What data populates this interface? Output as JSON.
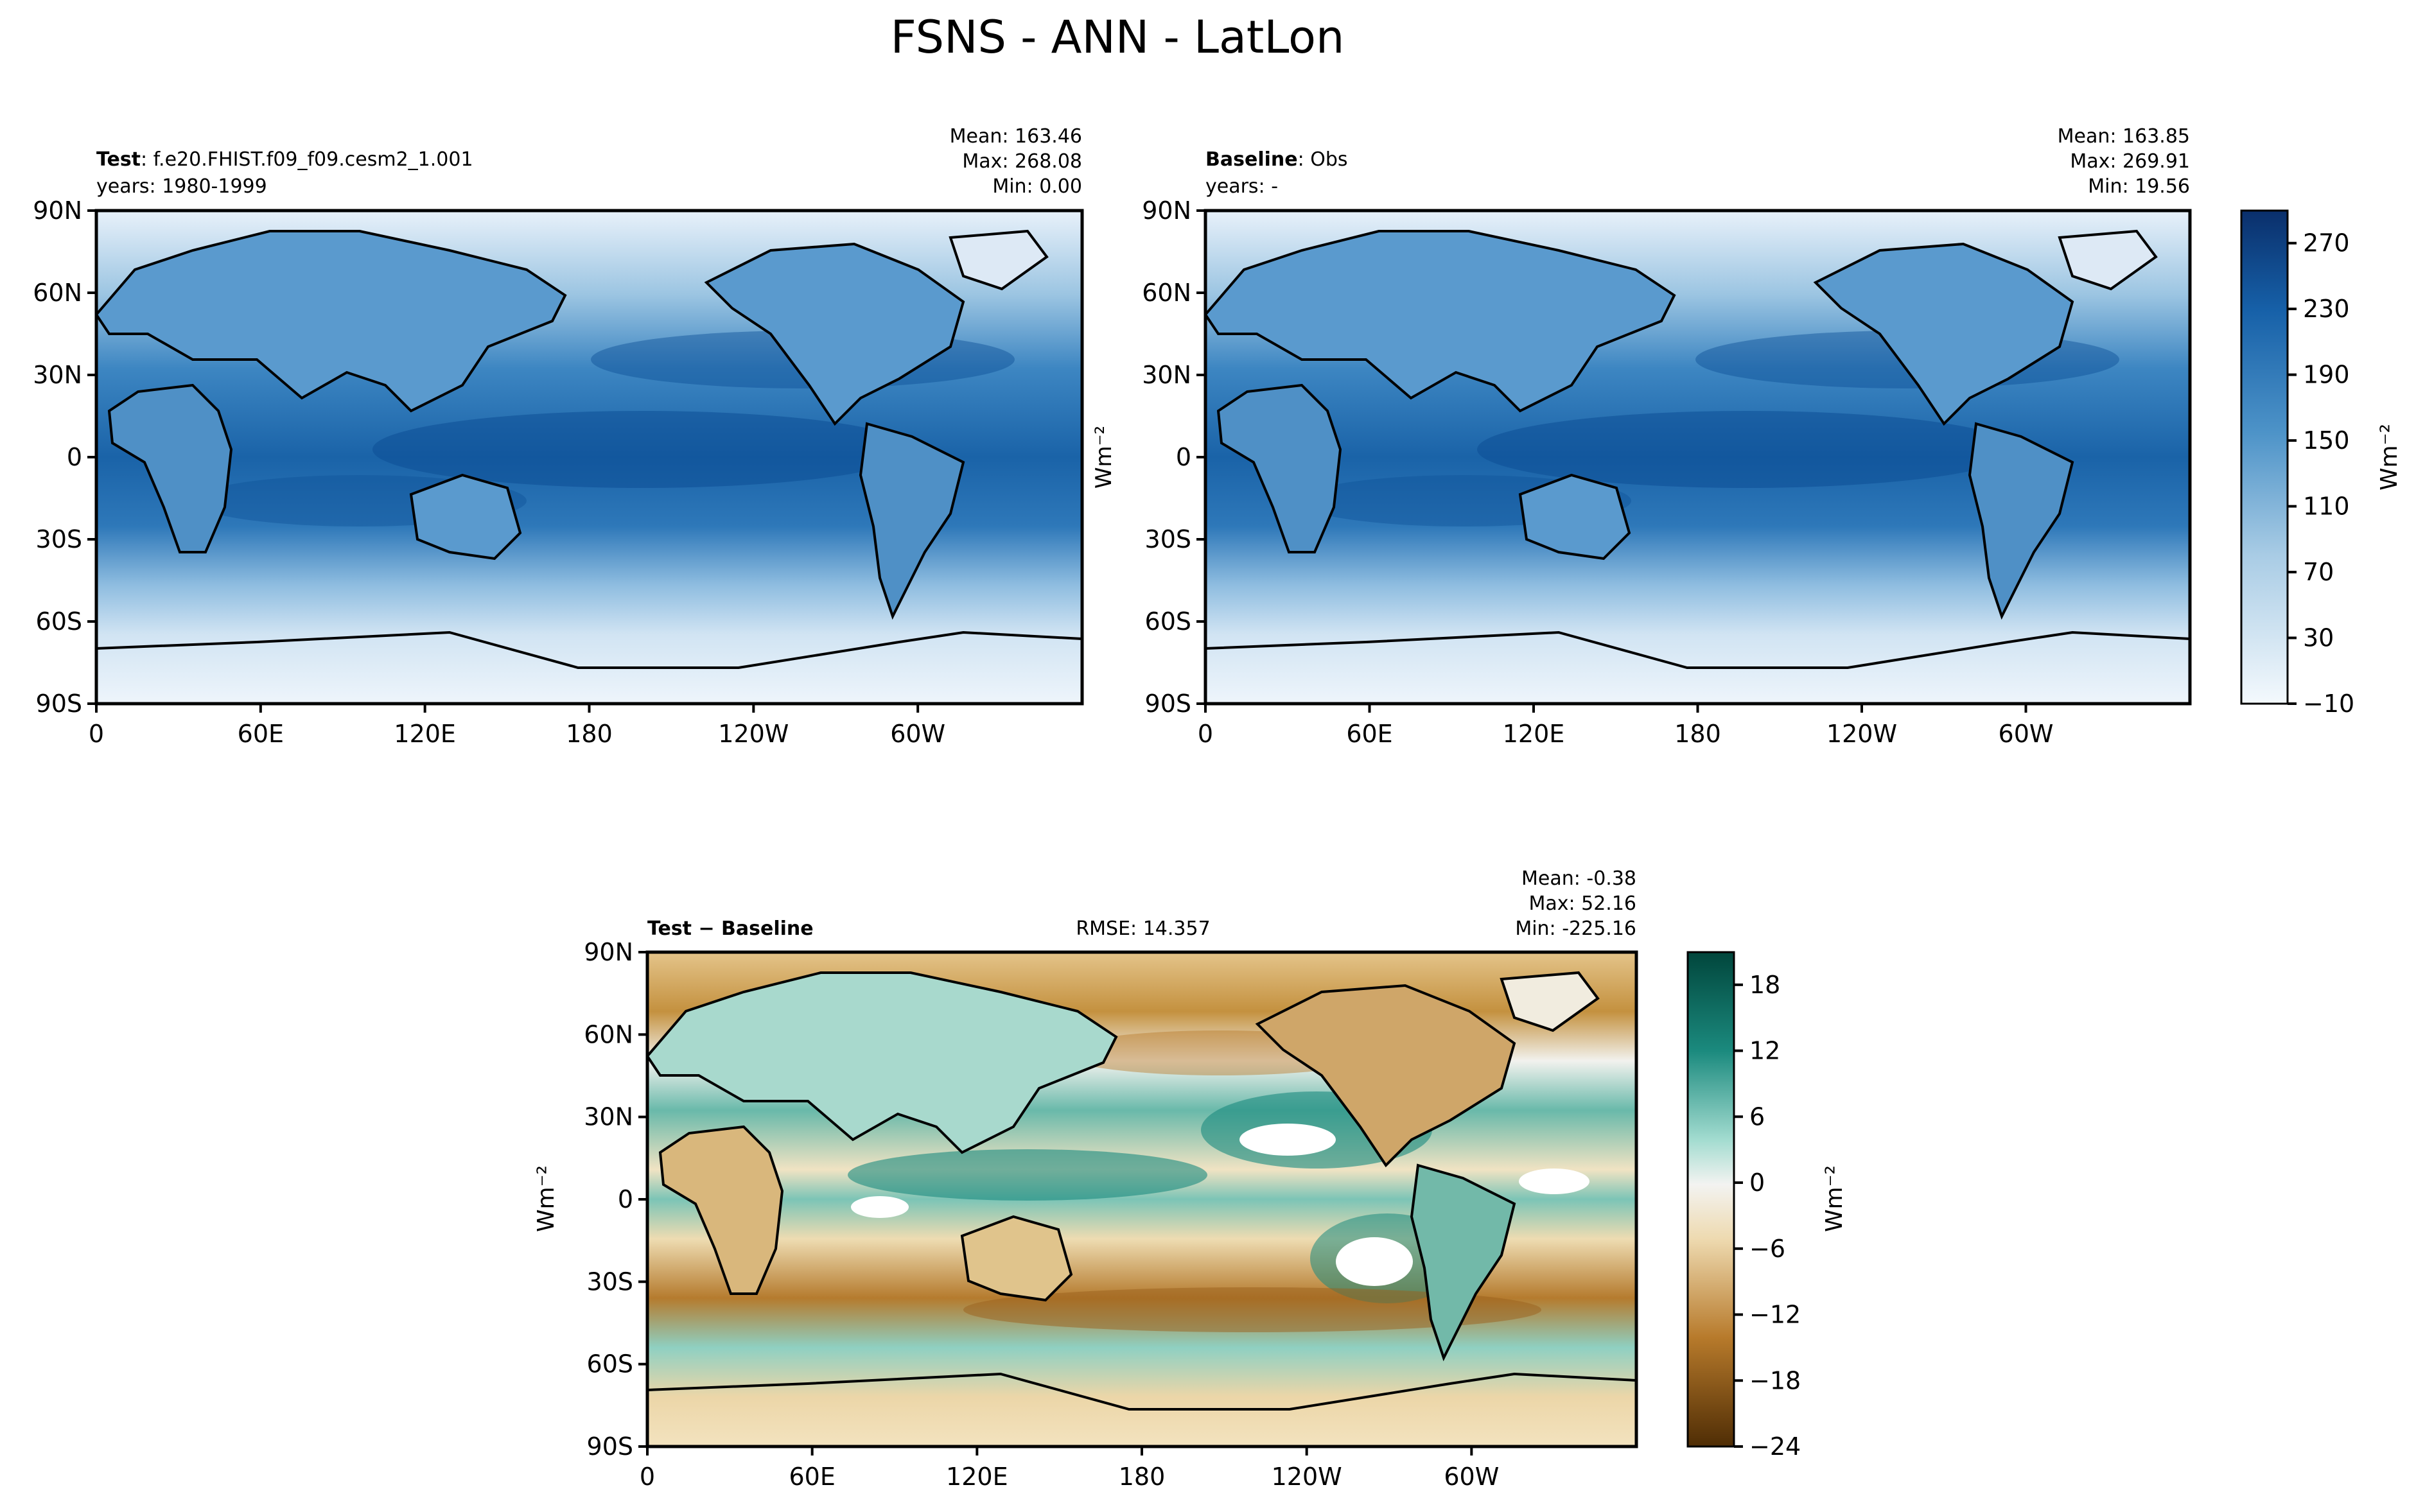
{
  "title": "FSNS - ANN - LatLon",
  "lat_ticks": [
    "90N",
    "60N",
    "30N",
    "0",
    "30S",
    "60S",
    "90S"
  ],
  "lon_ticks": [
    "0",
    "60E",
    "120E",
    "180",
    "120W",
    "60W"
  ],
  "panels": {
    "test": {
      "label_bold": "Test",
      "label_rest": ": f.e20.FHIST.f09_f09.cesm2_1.001",
      "years": "years: 1980-1999",
      "mean": "Mean: 163.46",
      "max": "Max: 268.08",
      "min": "Min:  0.00"
    },
    "baseline": {
      "label_bold": "Baseline",
      "label_rest": ": Obs",
      "years": "years: -",
      "mean": "Mean: 163.85",
      "max": "Max: 269.91",
      "min": "Min: 19.56",
      "units": "Wm⁻²"
    },
    "diff": {
      "label_bold": "Test − Baseline",
      "rmse": "RMSE: 14.357",
      "mean": "Mean: -0.38",
      "max": "Max: 52.16",
      "min": "Min: -225.16",
      "units": "Wm⁻²"
    }
  },
  "colorbars": {
    "main": {
      "ticks": [
        "270",
        "230",
        "190",
        "150",
        "110",
        "70",
        "30",
        "−10"
      ],
      "units": "Wm⁻²"
    },
    "diff": {
      "ticks": [
        "18",
        "12",
        "6",
        "0",
        "−6",
        "−12",
        "−18",
        "−24"
      ],
      "units": "Wm⁻²"
    }
  },
  "chart_data": [
    {
      "type": "heatmap",
      "title": "Test: f.e20.FHIST.f09_f09.cesm2_1.001",
      "subtitle": "years: 1980-1999",
      "x": [
        "0",
        "60E",
        "120E",
        "180",
        "120W",
        "60W"
      ],
      "y": [
        "90N",
        "60N",
        "30N",
        "0",
        "30S",
        "60S",
        "90S"
      ],
      "xlim": [
        0,
        360
      ],
      "ylim": [
        -90,
        90
      ],
      "stats": {
        "mean": 163.46,
        "max": 268.08,
        "min": 0.0
      },
      "colormap": "Blues",
      "clim": [
        -10,
        290
      ]
    },
    {
      "type": "heatmap",
      "title": "Baseline: Obs",
      "subtitle": "years: -",
      "x": [
        "0",
        "60E",
        "120E",
        "180",
        "120W",
        "60W"
      ],
      "y": [
        "90N",
        "60N",
        "30N",
        "0",
        "30S",
        "60S",
        "90S"
      ],
      "xlim": [
        0,
        360
      ],
      "ylim": [
        -90,
        90
      ],
      "stats": {
        "mean": 163.85,
        "max": 269.91,
        "min": 19.56
      },
      "colormap": "Blues",
      "clim": [
        -10,
        290
      ],
      "colorbar_ticks": [
        270,
        230,
        190,
        150,
        110,
        70,
        30,
        -10
      ]
    },
    {
      "type": "heatmap",
      "title": "Test − Baseline",
      "x": [
        "0",
        "60E",
        "120E",
        "180",
        "120W",
        "60W"
      ],
      "y": [
        "90N",
        "60N",
        "30N",
        "0",
        "30S",
        "60S",
        "90S"
      ],
      "xlim": [
        0,
        360
      ],
      "ylim": [
        -90,
        90
      ],
      "stats": {
        "mean": -0.38,
        "max": 52.16,
        "min": -225.16,
        "rmse": 14.357
      },
      "colormap": "BrBG",
      "clim": [
        -24,
        21
      ],
      "colorbar_ticks": [
        18,
        12,
        6,
        0,
        -6,
        -12,
        -18,
        -24
      ]
    }
  ]
}
